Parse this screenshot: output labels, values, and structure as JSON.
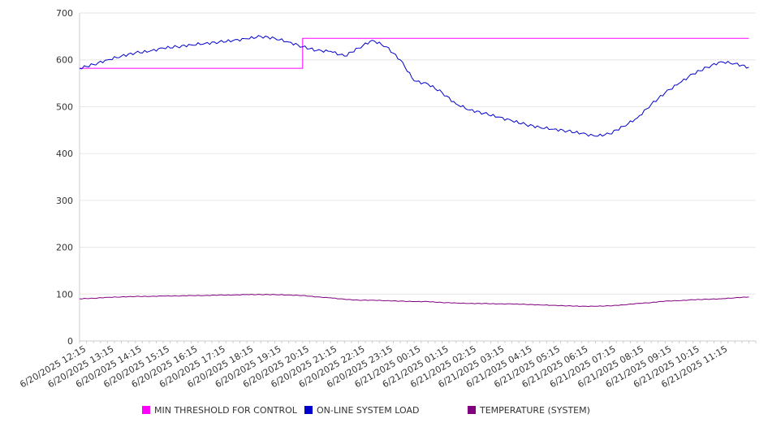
{
  "chart_data": {
    "type": "line",
    "title": "",
    "xlabel": "",
    "ylabel": "",
    "ylim": [
      0,
      700
    ],
    "yticks": [
      0,
      100,
      200,
      300,
      400,
      500,
      600,
      700
    ],
    "grid": true,
    "legend_position": "bottom",
    "x_start": "6/20/2025 12:00",
    "x_end": "6/21/2025 12:15",
    "x_tick_labels": [
      "6/20/2025 12:15",
      "6/20/2025 13:15",
      "6/20/2025 14:15",
      "6/20/2025 15:15",
      "6/20/2025 16:15",
      "6/20/2025 17:15",
      "6/20/2025 18:15",
      "6/20/2025 19:15",
      "6/20/2025 20:15",
      "6/20/2025 21:15",
      "6/20/2025 22:15",
      "6/20/2025 23:15",
      "6/21/2025 00:15",
      "6/21/2025 01:15",
      "6/21/2025 02:15",
      "6/21/2025 03:15",
      "6/21/2025 04:15",
      "6/21/2025 05:15",
      "6/21/2025 06:15",
      "6/21/2025 07:15",
      "6/21/2025 08:15",
      "6/21/2025 09:15",
      "6/21/2025 10:15",
      "6/21/2025 11:15"
    ],
    "x": [
      "6/20/2025 12:00",
      "6/20/2025 12:30",
      "6/20/2025 13:00",
      "6/20/2025 13:30",
      "6/20/2025 14:00",
      "6/20/2025 14:30",
      "6/20/2025 15:00",
      "6/20/2025 15:30",
      "6/20/2025 16:00",
      "6/20/2025 16:30",
      "6/20/2025 17:00",
      "6/20/2025 17:30",
      "6/20/2025 18:00",
      "6/20/2025 18:30",
      "6/20/2025 19:00",
      "6/20/2025 19:30",
      "6/20/2025 20:00",
      "6/20/2025 20:30",
      "6/20/2025 21:00",
      "6/20/2025 21:30",
      "6/20/2025 22:00",
      "6/20/2025 22:30",
      "6/20/2025 23:00",
      "6/20/2025 23:30",
      "6/21/2025 00:00",
      "6/21/2025 00:30",
      "6/21/2025 01:00",
      "6/21/2025 01:30",
      "6/21/2025 02:00",
      "6/21/2025 02:30",
      "6/21/2025 03:00",
      "6/21/2025 03:30",
      "6/21/2025 04:00",
      "6/21/2025 04:30",
      "6/21/2025 05:00",
      "6/21/2025 05:30",
      "6/21/2025 06:00",
      "6/21/2025 06:30",
      "6/21/2025 07:00",
      "6/21/2025 07:30",
      "6/21/2025 08:00",
      "6/21/2025 08:30",
      "6/21/2025 09:00",
      "6/21/2025 09:30",
      "6/21/2025 10:00",
      "6/21/2025 10:30",
      "6/21/2025 11:00",
      "6/21/2025 11:30",
      "6/21/2025 12:00"
    ],
    "series": [
      {
        "name": "MIN THRESHOLD FOR CONTROL",
        "color": "#ff00ff",
        "step": true,
        "values": [
          582,
          582,
          582,
          582,
          582,
          582,
          582,
          582,
          582,
          582,
          582,
          582,
          582,
          582,
          582,
          582,
          646,
          646,
          646,
          646,
          646,
          646,
          646,
          646,
          646,
          646,
          646,
          646,
          646,
          646,
          646,
          646,
          646,
          646,
          646,
          646,
          646,
          646,
          646,
          646,
          646,
          646,
          646,
          646,
          646,
          646,
          646,
          646,
          646
        ]
      },
      {
        "name": "ON-LINE SYSTEM LOAD",
        "color": "#0000cc",
        "values": [
          582,
          590,
          600,
          608,
          615,
          618,
          625,
          628,
          632,
          635,
          638,
          641,
          645,
          650,
          646,
          638,
          628,
          620,
          618,
          608,
          625,
          642,
          628,
          600,
          555,
          548,
          530,
          506,
          493,
          486,
          478,
          470,
          462,
          456,
          452,
          448,
          443,
          437,
          442,
          458,
          476,
          505,
          530,
          550,
          570,
          584,
          596,
          592,
          584
        ]
      },
      {
        "name": "TEMPERATURE (SYSTEM)",
        "color": "#800080",
        "values": [
          90,
          91,
          93,
          94,
          95,
          95,
          96,
          96,
          97,
          97,
          98,
          98,
          99,
          99,
          99,
          98,
          97,
          94,
          92,
          89,
          87,
          87,
          86,
          85,
          84,
          84,
          82,
          81,
          80,
          80,
          79,
          79,
          78,
          77,
          76,
          75,
          74,
          74,
          75,
          77,
          80,
          82,
          85,
          86,
          88,
          89,
          90,
          92,
          94
        ]
      }
    ]
  }
}
